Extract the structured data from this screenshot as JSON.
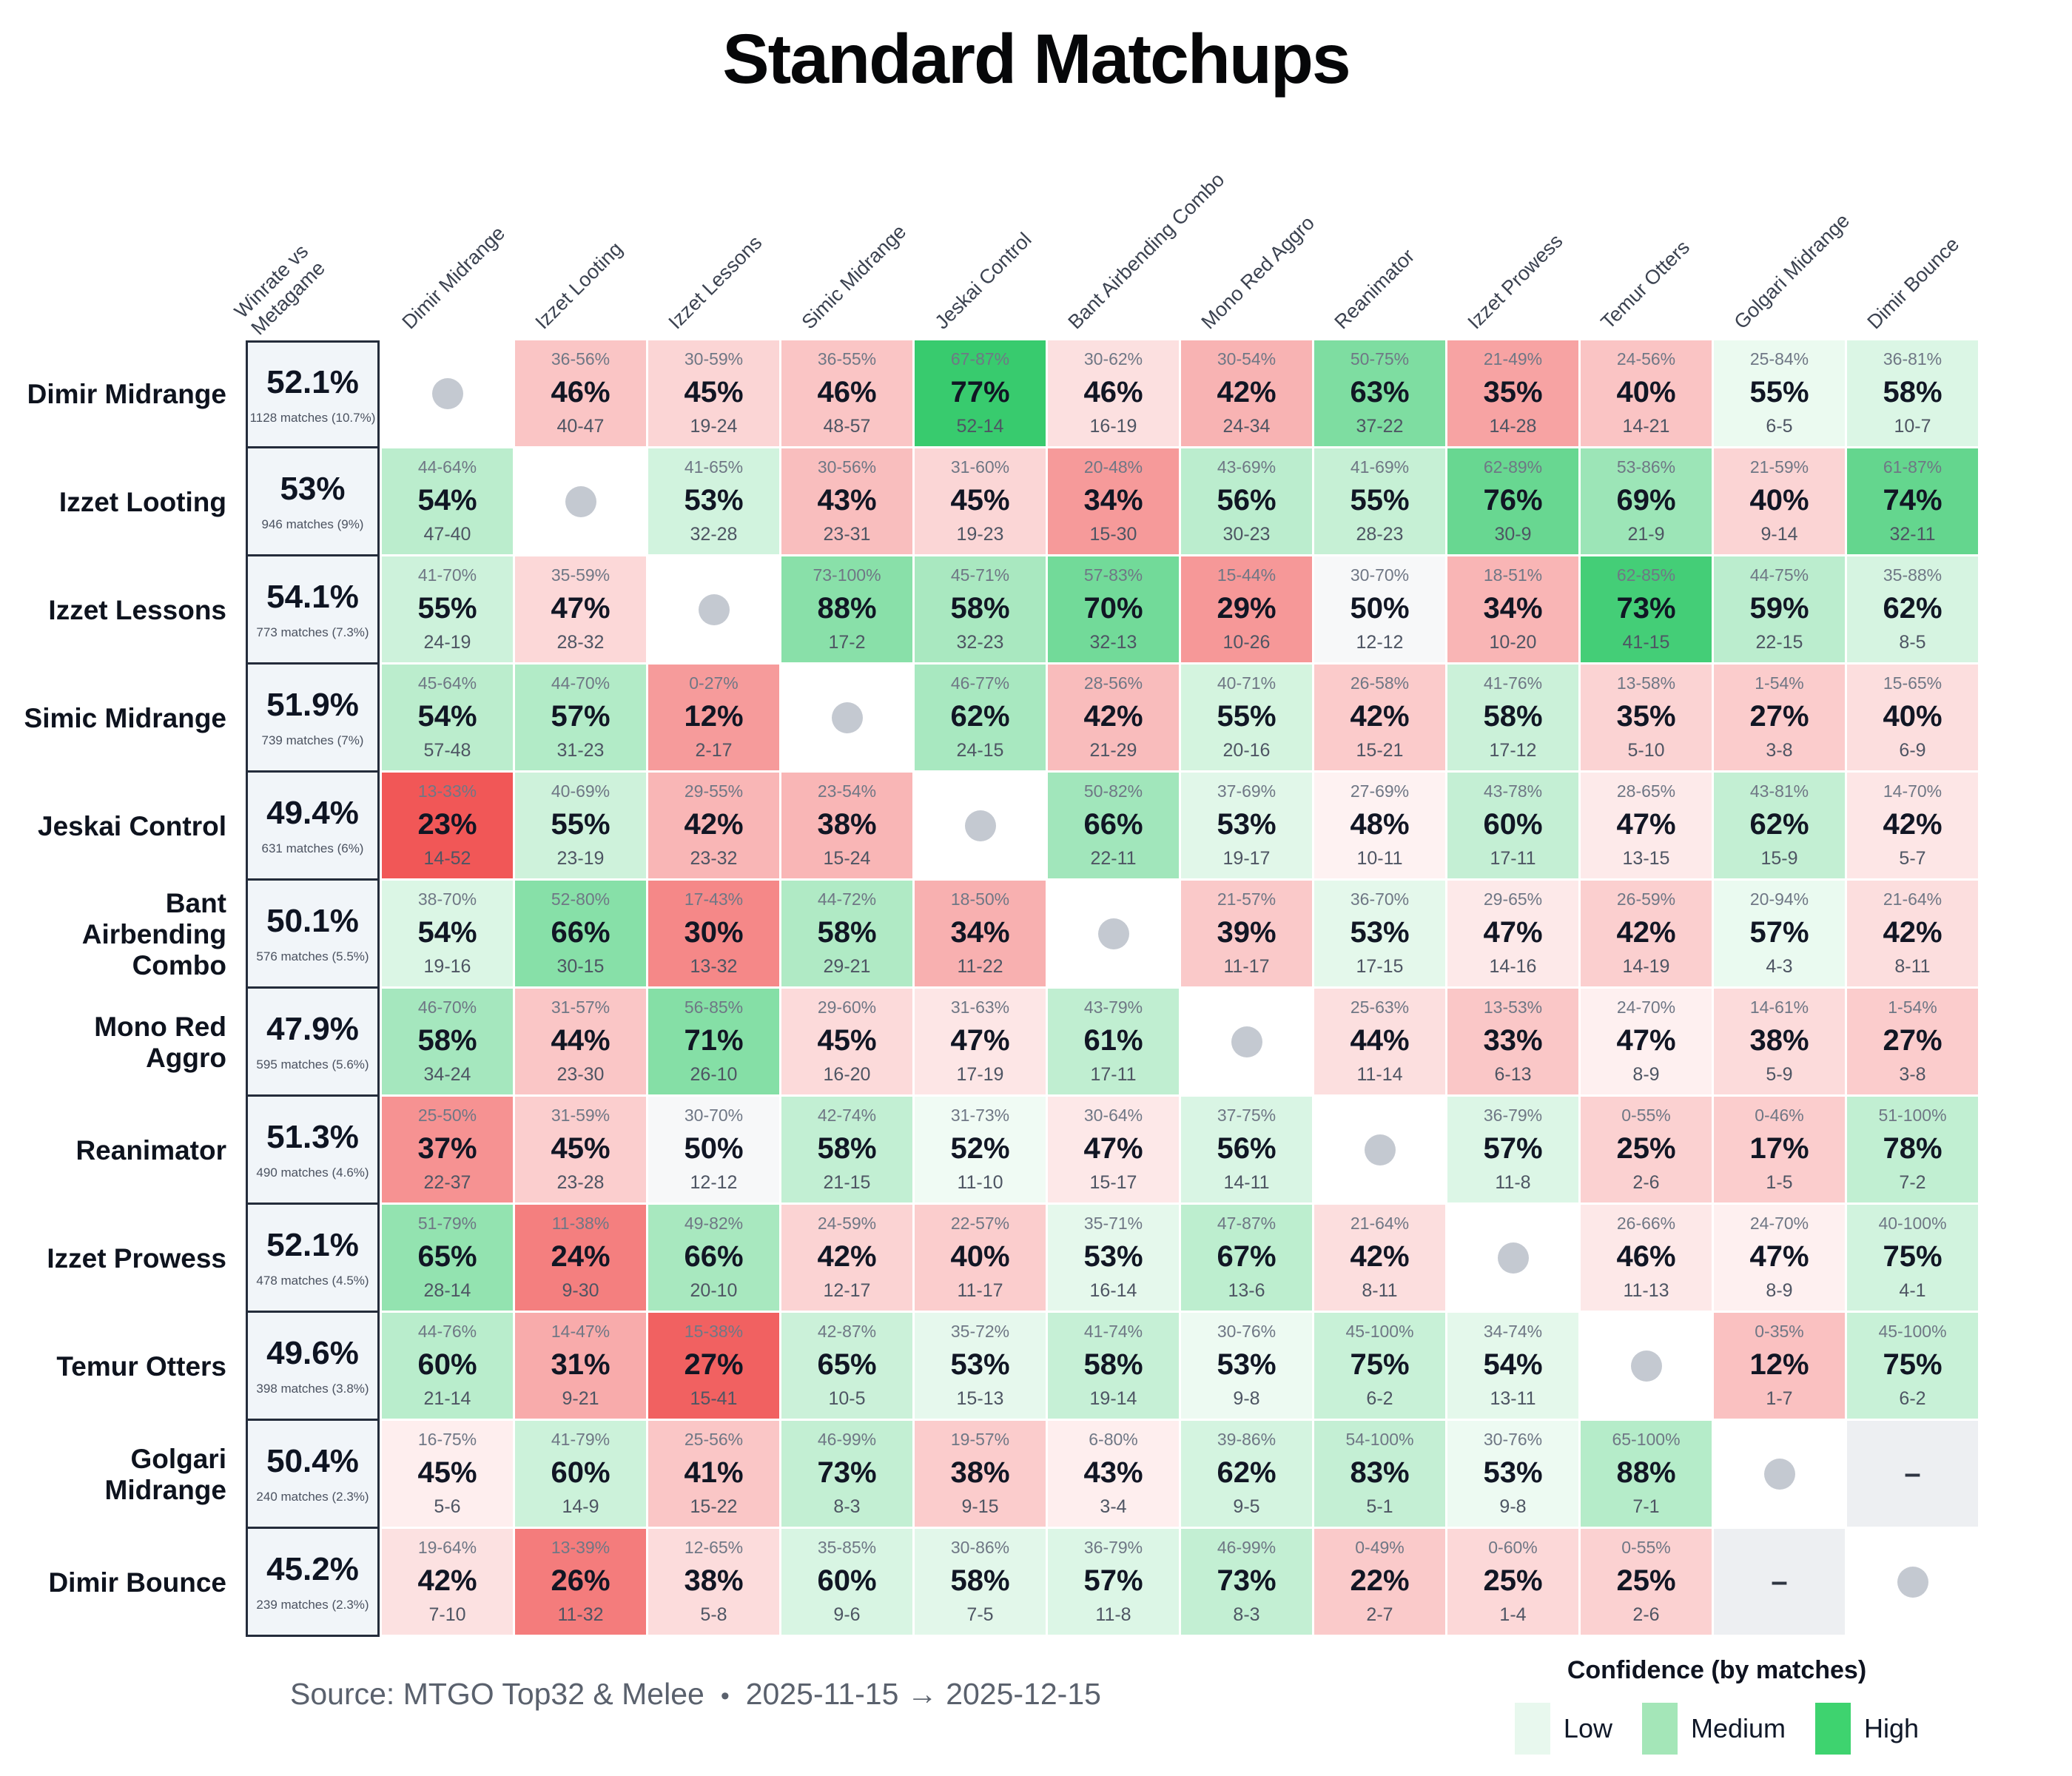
{
  "chart_data": {
    "type": "heatmap",
    "title": "Standard Matchups",
    "col_header_first": "Winrate vs\nMetagame",
    "columns": [
      "Dimir Midrange",
      "Izzet Looting",
      "Izzet Lessons",
      "Simic Midrange",
      "Jeskai Control",
      "Bant Airbending Combo",
      "Mono Red Aggro",
      "Reanimator",
      "Izzet Prowess",
      "Temur Otters",
      "Golgari Midrange",
      "Dimir Bounce"
    ],
    "scale": {
      "positive": "#22c55e",
      "negative": "#ef4444",
      "neutral": "#f7f8f9",
      "mirror_dot": "#c4c9d1",
      "nodata_bg": "#edeff2"
    },
    "dash_symbol": "–",
    "rows": [
      {
        "name": "Dimir Midrange",
        "winrate": "52.1%",
        "matches": "1128 matches (10.7%)",
        "cells": [
          {
            "type": "mirror"
          },
          {
            "range": "36-56%",
            "win": 46,
            "record": "40-47"
          },
          {
            "range": "30-59%",
            "win": 45,
            "record": "19-24"
          },
          {
            "range": "36-55%",
            "win": 46,
            "record": "48-57"
          },
          {
            "range": "67-87%",
            "win": 77,
            "record": "52-14"
          },
          {
            "range": "30-62%",
            "win": 46,
            "record": "16-19"
          },
          {
            "range": "30-54%",
            "win": 42,
            "record": "24-34"
          },
          {
            "range": "50-75%",
            "win": 63,
            "record": "37-22"
          },
          {
            "range": "21-49%",
            "win": 35,
            "record": "14-28"
          },
          {
            "range": "24-56%",
            "win": 40,
            "record": "14-21"
          },
          {
            "range": "25-84%",
            "win": 55,
            "record": "6-5"
          },
          {
            "range": "36-81%",
            "win": 58,
            "record": "10-7"
          }
        ]
      },
      {
        "name": "Izzet Looting",
        "winrate": "53%",
        "matches": "946 matches (9%)",
        "cells": [
          {
            "range": "44-64%",
            "win": 54,
            "record": "47-40"
          },
          {
            "type": "mirror"
          },
          {
            "range": "41-65%",
            "win": 53,
            "record": "32-28"
          },
          {
            "range": "30-56%",
            "win": 43,
            "record": "23-31"
          },
          {
            "range": "31-60%",
            "win": 45,
            "record": "19-23"
          },
          {
            "range": "20-48%",
            "win": 34,
            "record": "15-30"
          },
          {
            "range": "43-69%",
            "win": 56,
            "record": "30-23"
          },
          {
            "range": "41-69%",
            "win": 55,
            "record": "28-23"
          },
          {
            "range": "62-89%",
            "win": 76,
            "record": "30-9"
          },
          {
            "range": "53-86%",
            "win": 69,
            "record": "21-9"
          },
          {
            "range": "21-59%",
            "win": 40,
            "record": "9-14"
          },
          {
            "range": "61-87%",
            "win": 74,
            "record": "32-11"
          }
        ]
      },
      {
        "name": "Izzet Lessons",
        "winrate": "54.1%",
        "matches": "773 matches (7.3%)",
        "cells": [
          {
            "range": "41-70%",
            "win": 55,
            "record": "24-19"
          },
          {
            "range": "35-59%",
            "win": 47,
            "record": "28-32"
          },
          {
            "type": "mirror"
          },
          {
            "range": "73-100%",
            "win": 88,
            "record": "17-2"
          },
          {
            "range": "45-71%",
            "win": 58,
            "record": "32-23"
          },
          {
            "range": "57-83%",
            "win": 70,
            "record": "32-13"
          },
          {
            "range": "15-44%",
            "win": 29,
            "record": "10-26"
          },
          {
            "range": "30-70%",
            "win": 50,
            "record": "12-12"
          },
          {
            "range": "18-51%",
            "win": 34,
            "record": "10-20"
          },
          {
            "range": "62-85%",
            "win": 73,
            "record": "41-15"
          },
          {
            "range": "44-75%",
            "win": 59,
            "record": "22-15"
          },
          {
            "range": "35-88%",
            "win": 62,
            "record": "8-5"
          }
        ]
      },
      {
        "name": "Simic Midrange",
        "winrate": "51.9%",
        "matches": "739 matches (7%)",
        "cells": [
          {
            "range": "45-64%",
            "win": 54,
            "record": "57-48"
          },
          {
            "range": "44-70%",
            "win": 57,
            "record": "31-23"
          },
          {
            "range": "0-27%",
            "win": 12,
            "record": "2-17"
          },
          {
            "type": "mirror"
          },
          {
            "range": "46-77%",
            "win": 62,
            "record": "24-15"
          },
          {
            "range": "28-56%",
            "win": 42,
            "record": "21-29"
          },
          {
            "range": "40-71%",
            "win": 55,
            "record": "20-16"
          },
          {
            "range": "26-58%",
            "win": 42,
            "record": "15-21"
          },
          {
            "range": "41-76%",
            "win": 58,
            "record": "17-12"
          },
          {
            "range": "13-58%",
            "win": 35,
            "record": "5-10"
          },
          {
            "range": "1-54%",
            "win": 27,
            "record": "3-8"
          },
          {
            "range": "15-65%",
            "win": 40,
            "record": "6-9"
          }
        ]
      },
      {
        "name": "Jeskai Control",
        "winrate": "49.4%",
        "matches": "631 matches (6%)",
        "cells": [
          {
            "range": "13-33%",
            "win": 23,
            "record": "14-52"
          },
          {
            "range": "40-69%",
            "win": 55,
            "record": "23-19"
          },
          {
            "range": "29-55%",
            "win": 42,
            "record": "23-32"
          },
          {
            "range": "23-54%",
            "win": 38,
            "record": "15-24"
          },
          {
            "type": "mirror"
          },
          {
            "range": "50-82%",
            "win": 66,
            "record": "22-11"
          },
          {
            "range": "37-69%",
            "win": 53,
            "record": "19-17"
          },
          {
            "range": "27-69%",
            "win": 48,
            "record": "10-11"
          },
          {
            "range": "43-78%",
            "win": 60,
            "record": "17-11"
          },
          {
            "range": "28-65%",
            "win": 47,
            "record": "13-15"
          },
          {
            "range": "43-81%",
            "win": 62,
            "record": "15-9"
          },
          {
            "range": "14-70%",
            "win": 42,
            "record": "5-7"
          }
        ]
      },
      {
        "name": "Bant Airbending Combo",
        "winrate": "50.1%",
        "matches": "576 matches (5.5%)",
        "cells": [
          {
            "range": "38-70%",
            "win": 54,
            "record": "19-16"
          },
          {
            "range": "52-80%",
            "win": 66,
            "record": "30-15"
          },
          {
            "range": "17-43%",
            "win": 30,
            "record": "13-32"
          },
          {
            "range": "44-72%",
            "win": 58,
            "record": "29-21"
          },
          {
            "range": "18-50%",
            "win": 34,
            "record": "11-22"
          },
          {
            "type": "mirror"
          },
          {
            "range": "21-57%",
            "win": 39,
            "record": "11-17"
          },
          {
            "range": "36-70%",
            "win": 53,
            "record": "17-15"
          },
          {
            "range": "29-65%",
            "win": 47,
            "record": "14-16"
          },
          {
            "range": "26-59%",
            "win": 42,
            "record": "14-19"
          },
          {
            "range": "20-94%",
            "win": 57,
            "record": "4-3"
          },
          {
            "range": "21-64%",
            "win": 42,
            "record": "8-11"
          }
        ]
      },
      {
        "name": "Mono Red Aggro",
        "winrate": "47.9%",
        "matches": "595 matches (5.6%)",
        "cells": [
          {
            "range": "46-70%",
            "win": 58,
            "record": "34-24"
          },
          {
            "range": "31-57%",
            "win": 44,
            "record": "23-30"
          },
          {
            "range": "56-85%",
            "win": 71,
            "record": "26-10"
          },
          {
            "range": "29-60%",
            "win": 45,
            "record": "16-20"
          },
          {
            "range": "31-63%",
            "win": 47,
            "record": "17-19"
          },
          {
            "range": "43-79%",
            "win": 61,
            "record": "17-11"
          },
          {
            "type": "mirror"
          },
          {
            "range": "25-63%",
            "win": 44,
            "record": "11-14"
          },
          {
            "range": "13-53%",
            "win": 33,
            "record": "6-13"
          },
          {
            "range": "24-70%",
            "win": 47,
            "record": "8-9"
          },
          {
            "range": "14-61%",
            "win": 38,
            "record": "5-9"
          },
          {
            "range": "1-54%",
            "win": 27,
            "record": "3-8"
          }
        ]
      },
      {
        "name": "Reanimator",
        "winrate": "51.3%",
        "matches": "490 matches (4.6%)",
        "cells": [
          {
            "range": "25-50%",
            "win": 37,
            "record": "22-37"
          },
          {
            "range": "31-59%",
            "win": 45,
            "record": "23-28"
          },
          {
            "range": "30-70%",
            "win": 50,
            "record": "12-12"
          },
          {
            "range": "42-74%",
            "win": 58,
            "record": "21-15"
          },
          {
            "range": "31-73%",
            "win": 52,
            "record": "11-10"
          },
          {
            "range": "30-64%",
            "win": 47,
            "record": "15-17"
          },
          {
            "range": "37-75%",
            "win": 56,
            "record": "14-11"
          },
          {
            "type": "mirror"
          },
          {
            "range": "36-79%",
            "win": 57,
            "record": "11-8"
          },
          {
            "range": "0-55%",
            "win": 25,
            "record": "2-6"
          },
          {
            "range": "0-46%",
            "win": 17,
            "record": "1-5"
          },
          {
            "range": "51-100%",
            "win": 78,
            "record": "7-2"
          }
        ]
      },
      {
        "name": "Izzet Prowess",
        "winrate": "52.1%",
        "matches": "478 matches (4.5%)",
        "cells": [
          {
            "range": "51-79%",
            "win": 65,
            "record": "28-14"
          },
          {
            "range": "11-38%",
            "win": 24,
            "record": "9-30"
          },
          {
            "range": "49-82%",
            "win": 66,
            "record": "20-10"
          },
          {
            "range": "24-59%",
            "win": 42,
            "record": "12-17"
          },
          {
            "range": "22-57%",
            "win": 40,
            "record": "11-17"
          },
          {
            "range": "35-71%",
            "win": 53,
            "record": "16-14"
          },
          {
            "range": "47-87%",
            "win": 67,
            "record": "13-6"
          },
          {
            "range": "21-64%",
            "win": 42,
            "record": "8-11"
          },
          {
            "type": "mirror"
          },
          {
            "range": "26-66%",
            "win": 46,
            "record": "11-13"
          },
          {
            "range": "24-70%",
            "win": 47,
            "record": "8-9"
          },
          {
            "range": "40-100%",
            "win": 75,
            "record": "4-1"
          }
        ]
      },
      {
        "name": "Temur Otters",
        "winrate": "49.6%",
        "matches": "398 matches (3.8%)",
        "cells": [
          {
            "range": "44-76%",
            "win": 60,
            "record": "21-14"
          },
          {
            "range": "14-47%",
            "win": 31,
            "record": "9-21"
          },
          {
            "range": "15-38%",
            "win": 27,
            "record": "15-41"
          },
          {
            "range": "42-87%",
            "win": 65,
            "record": "10-5"
          },
          {
            "range": "35-72%",
            "win": 53,
            "record": "15-13"
          },
          {
            "range": "41-74%",
            "win": 58,
            "record": "19-14"
          },
          {
            "range": "30-76%",
            "win": 53,
            "record": "9-8"
          },
          {
            "range": "45-100%",
            "win": 75,
            "record": "6-2"
          },
          {
            "range": "34-74%",
            "win": 54,
            "record": "13-11"
          },
          {
            "type": "mirror"
          },
          {
            "range": "0-35%",
            "win": 12,
            "record": "1-7"
          },
          {
            "range": "45-100%",
            "win": 75,
            "record": "6-2"
          }
        ]
      },
      {
        "name": "Golgari Midrange",
        "winrate": "50.4%",
        "matches": "240 matches (2.3%)",
        "cells": [
          {
            "range": "16-75%",
            "win": 45,
            "record": "5-6"
          },
          {
            "range": "41-79%",
            "win": 60,
            "record": "14-9"
          },
          {
            "range": "25-56%",
            "win": 41,
            "record": "15-22"
          },
          {
            "range": "46-99%",
            "win": 73,
            "record": "8-3"
          },
          {
            "range": "19-57%",
            "win": 38,
            "record": "9-15"
          },
          {
            "range": "6-80%",
            "win": 43,
            "record": "3-4"
          },
          {
            "range": "39-86%",
            "win": 62,
            "record": "9-5"
          },
          {
            "range": "54-100%",
            "win": 83,
            "record": "5-1"
          },
          {
            "range": "30-76%",
            "win": 53,
            "record": "9-8"
          },
          {
            "range": "65-100%",
            "win": 88,
            "record": "7-1"
          },
          {
            "type": "mirror"
          },
          {
            "type": "nodata"
          }
        ]
      },
      {
        "name": "Dimir Bounce",
        "winrate": "45.2%",
        "matches": "239 matches (2.3%)",
        "cells": [
          {
            "range": "19-64%",
            "win": 42,
            "record": "7-10"
          },
          {
            "range": "13-39%",
            "win": 26,
            "record": "11-32"
          },
          {
            "range": "12-65%",
            "win": 38,
            "record": "5-8"
          },
          {
            "range": "35-85%",
            "win": 60,
            "record": "9-6"
          },
          {
            "range": "30-86%",
            "win": 58,
            "record": "7-5"
          },
          {
            "range": "36-79%",
            "win": 57,
            "record": "11-8"
          },
          {
            "range": "46-99%",
            "win": 73,
            "record": "8-3"
          },
          {
            "range": "0-49%",
            "win": 22,
            "record": "2-7"
          },
          {
            "range": "0-60%",
            "win": 25,
            "record": "1-4"
          },
          {
            "range": "0-55%",
            "win": 25,
            "record": "2-6"
          },
          {
            "type": "nodata"
          },
          {
            "type": "mirror"
          }
        ]
      }
    ],
    "footer": {
      "source_label": "Source: MTGO Top32 & Melee",
      "bullet": "•",
      "date_range": "2025-11-15 → 2025-12-15"
    },
    "legend": {
      "title": "Confidence (by matches)",
      "items": [
        {
          "label": "Low",
          "color": "#e8f8ee"
        },
        {
          "label": "Medium",
          "color": "#a4e6b8"
        },
        {
          "label": "High",
          "color": "#3ed36f"
        }
      ]
    }
  }
}
